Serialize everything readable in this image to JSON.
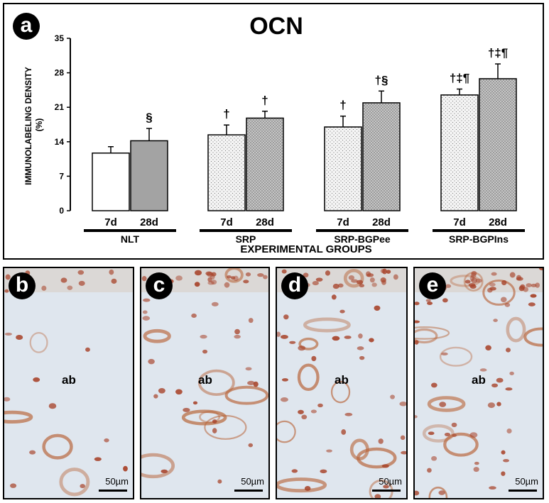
{
  "panel_a": {
    "letter": "a",
    "title": "OCN",
    "ylabel_line1": "IMMUNOLABELING DENSITY",
    "ylabel_line2": "(%)",
    "xlabel": "EXPERIMENTAL GROUPS"
  },
  "chart_data": {
    "type": "bar",
    "title": "OCN",
    "ylabel": "IMMUNOLABELING DENSITY (%)",
    "xlabel": "EXPERIMENTAL GROUPS",
    "ylim": [
      0,
      35
    ],
    "yticks": [
      "0",
      "7",
      "14",
      "21",
      "28",
      "35"
    ],
    "grid": false,
    "groups": [
      {
        "name": "NLT",
        "bars": [
          {
            "label": "7d",
            "value": 11.7,
            "error": 1.3,
            "annotation": "",
            "fill": "white"
          },
          {
            "label": "28d",
            "value": 14.2,
            "error": 2.5,
            "annotation": "§",
            "fill": "gray"
          }
        ]
      },
      {
        "name": "SRP",
        "bars": [
          {
            "label": "7d",
            "value": 15.4,
            "error": 2.0,
            "annotation": "†",
            "fill": "light-dots"
          },
          {
            "label": "28d",
            "value": 18.8,
            "error": 1.4,
            "annotation": "†",
            "fill": "dark-dots"
          }
        ]
      },
      {
        "name": "SRP-BGPee",
        "bars": [
          {
            "label": "7d",
            "value": 17.0,
            "error": 2.2,
            "annotation": "†",
            "fill": "light-dots"
          },
          {
            "label": "28d",
            "value": 21.9,
            "error": 2.4,
            "annotation": "†§",
            "fill": "dark-dots"
          }
        ]
      },
      {
        "name": "SRP-BGPIns",
        "bars": [
          {
            "label": "7d",
            "value": 23.5,
            "error": 1.2,
            "annotation": "†‡¶",
            "fill": "light-dots"
          },
          {
            "label": "28d",
            "value": 26.8,
            "error": 3.0,
            "annotation": "†‡¶",
            "fill": "dark-dots"
          }
        ]
      }
    ]
  },
  "panels": [
    {
      "letter": "b",
      "region_label": "ab",
      "scale_bar": "50µm",
      "cell_density": 1
    },
    {
      "letter": "c",
      "region_label": "ab",
      "scale_bar": "50µm",
      "cell_density": 3
    },
    {
      "letter": "d",
      "region_label": "ab",
      "scale_bar": "50µm",
      "cell_density": 4
    },
    {
      "letter": "e",
      "region_label": "ab",
      "scale_bar": "50µm",
      "cell_density": 5
    }
  ],
  "colors": {
    "bar_gray": "#a3a3a3",
    "bar_light_dots": "#f4f4f4",
    "bar_dark_dots": "#c4c4c4",
    "tissue_bg": "#dfe6ee",
    "tissue_stain": "#b8653a",
    "cell_nucleus": "#a8452c"
  }
}
